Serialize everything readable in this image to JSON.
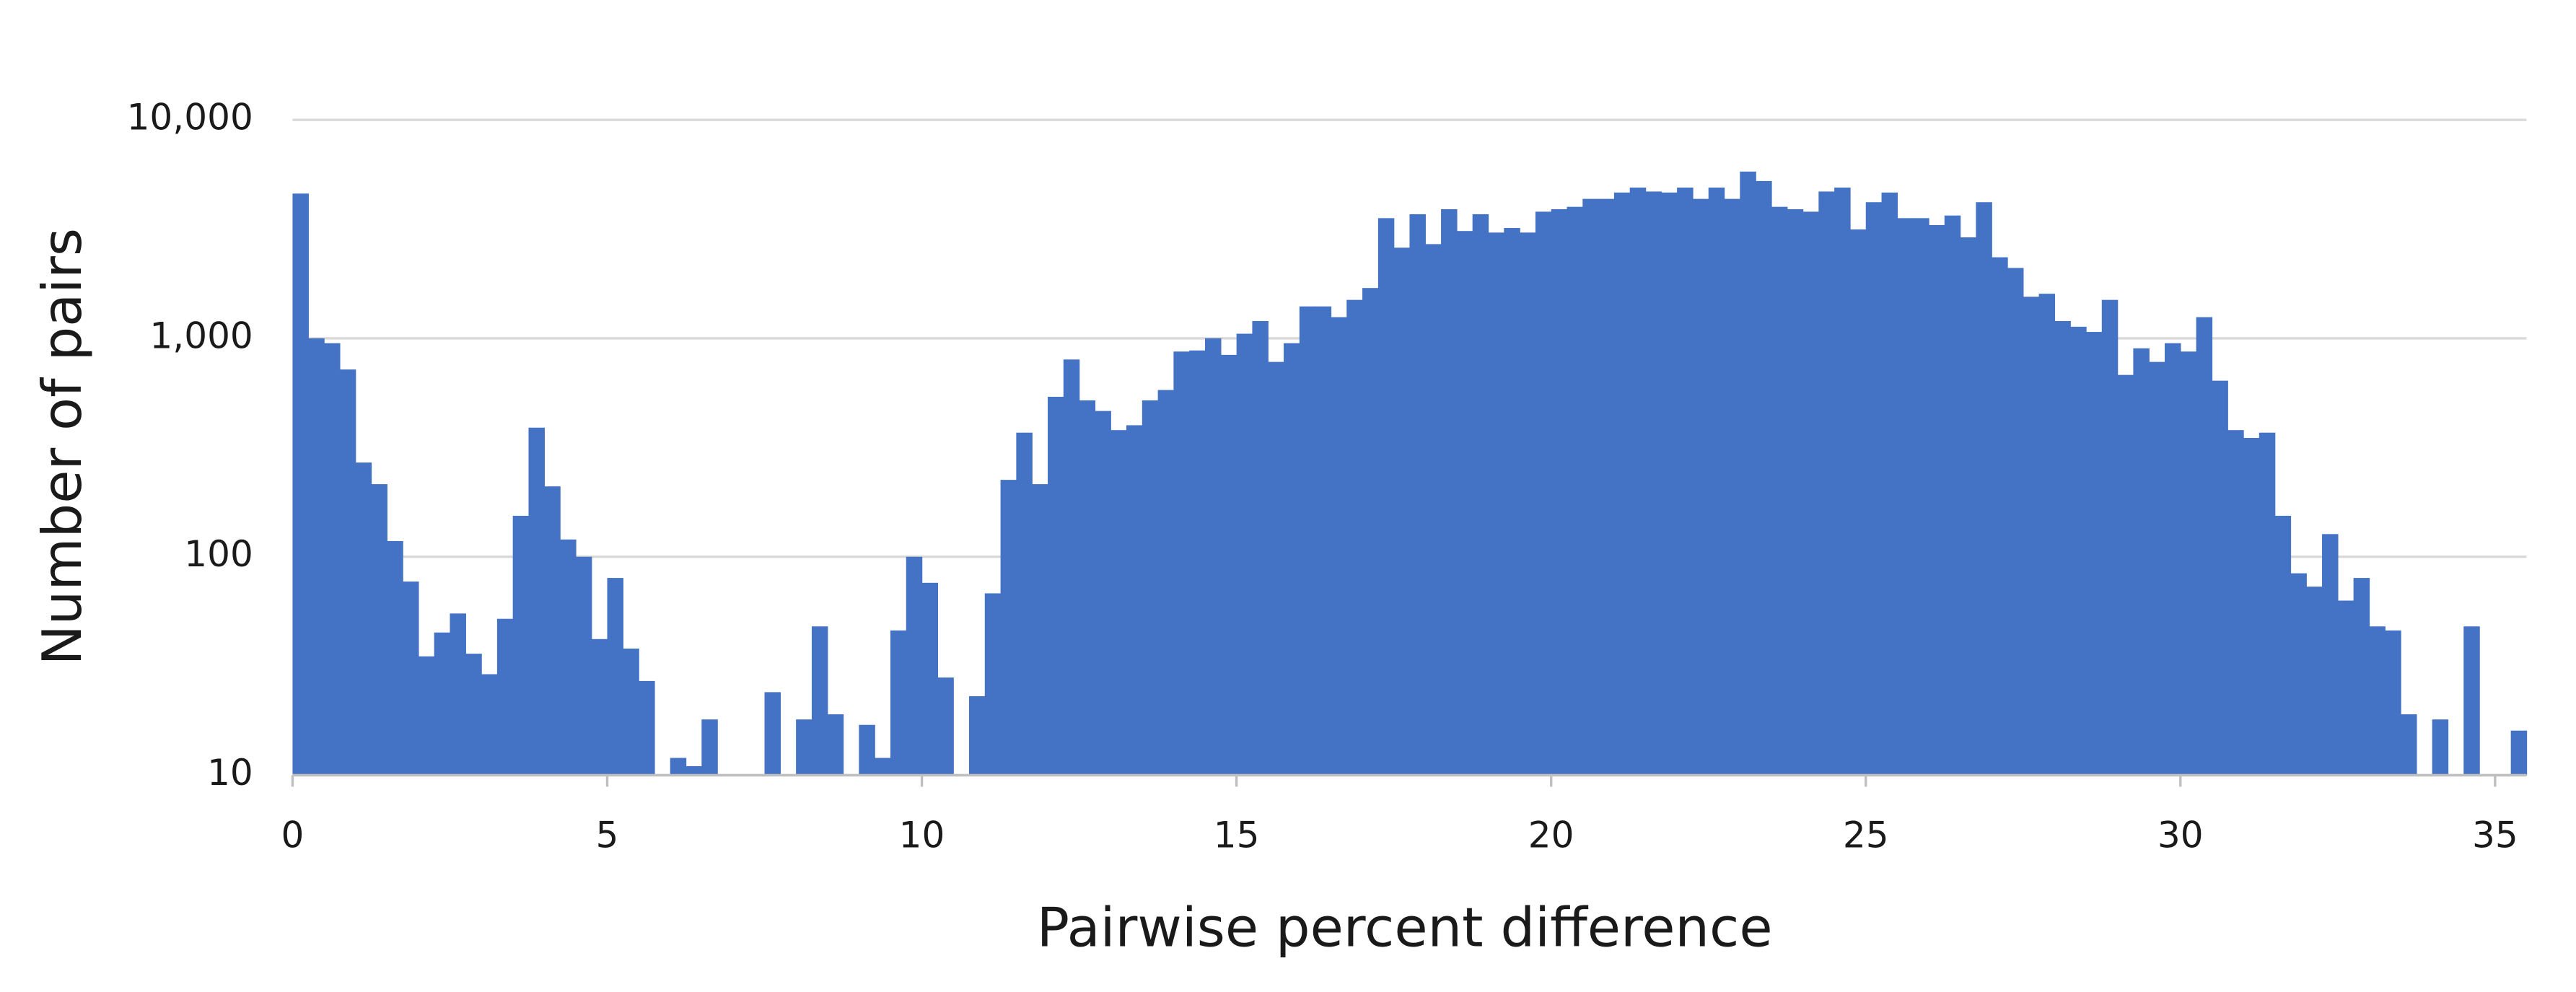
{
  "chart_data": {
    "type": "histogram",
    "xlabel": "Pairwise percent difference",
    "ylabel": "Number of pairs",
    "color": "#4472c4",
    "log_y": true,
    "grid": true,
    "bins": [
      0,
      0.25,
      0.5,
      0.75,
      1,
      1.25,
      1.5,
      1.75,
      2,
      2.25,
      2.5,
      2.75,
      3,
      3.25,
      3.5,
      3.75,
      4,
      4.25,
      4.5,
      4.75,
      5,
      5.25,
      5.5,
      5.75,
      6,
      6.25,
      6.5,
      6.75,
      7,
      7.25,
      7.5,
      7.75,
      8,
      8.25,
      8.5,
      8.75,
      9,
      9.25,
      9.5,
      9.75,
      10,
      10.25,
      10.5,
      10.75,
      11,
      11.25,
      11.5,
      11.75,
      12,
      12.25,
      12.5,
      12.75,
      13,
      13.25,
      13.5,
      13.75,
      14,
      14.25,
      14.5,
      14.75,
      15,
      15.25,
      15.5,
      15.75,
      16,
      16.25,
      16.5,
      16.75,
      17,
      17.25,
      17.5,
      17.75,
      18,
      18.25,
      18.5,
      18.75,
      19,
      19.25,
      19.5,
      19.75,
      20,
      20.25,
      20.5,
      20.75,
      21,
      21.25,
      21.5,
      21.75,
      22,
      22.25,
      22.5,
      22.75,
      23,
      23.25,
      23.5,
      23.75,
      24,
      24.25,
      24.5,
      24.75,
      25,
      25.25,
      25.5,
      25.75,
      26,
      26.25,
      26.5,
      26.75,
      27,
      27.25,
      27.5,
      27.75,
      28,
      28.25,
      28.5,
      28.75,
      29,
      29.25,
      29.5,
      29.75,
      30,
      30.25,
      30.5,
      30.75,
      31,
      31.25,
      31.5,
      31.75,
      32,
      32.25,
      32.5,
      32.75,
      33,
      33.25,
      33.5,
      33.75,
      34,
      34.25,
      34.5,
      34.75,
      35,
      35.25,
      35.5
    ],
    "counts": [
      4600,
      1000,
      950,
      720,
      270,
      215,
      118,
      77,
      35,
      45,
      55,
      36,
      29,
      52,
      154,
      390,
      210,
      120,
      100,
      42,
      80,
      38,
      27,
      0,
      12,
      11,
      18,
      0,
      0,
      0,
      24,
      0,
      18,
      48,
      19,
      0,
      17,
      12,
      46,
      100,
      76,
      28,
      0,
      23,
      68,
      225,
      370,
      215,
      540,
      800,
      520,
      465,
      380,
      400,
      520,
      580,
      870,
      880,
      1000,
      840,
      1050,
      1200,
      780,
      950,
      1400,
      1400,
      1250,
      1500,
      1700,
      3550,
      2600,
      3700,
      2700,
      3900,
      3100,
      3700,
      3050,
      3200,
      3050,
      3800,
      3900,
      4000,
      4350,
      4350,
      4650,
      4900,
      4700,
      4650,
      4900,
      4350,
      4900,
      4350,
      5800,
      5250,
      4000,
      3900,
      3800,
      4700,
      4900,
      3150,
      4200,
      4650,
      3550,
      3550,
      3300,
      3650,
      2900,
      4200,
      2350,
      2100,
      1550,
      1600,
      1200,
      1130,
      1070,
      1500,
      680,
      900,
      780,
      950,
      870,
      1250,
      640,
      380,
      350,
      370,
      154,
      84,
      73,
      127,
      63,
      80,
      48,
      46,
      19,
      0,
      18,
      0,
      48,
      0,
      0,
      16
    ],
    "xlim": [
      0,
      35.5
    ],
    "xticks": [
      0,
      5,
      10,
      15,
      20,
      25,
      30,
      35
    ],
    "ylim": [
      10,
      10000
    ],
    "yticks": [
      10,
      100,
      {
        "value": 1000,
        "label": "1,000"
      },
      {
        "value": 10000,
        "label": "10,000"
      }
    ]
  }
}
